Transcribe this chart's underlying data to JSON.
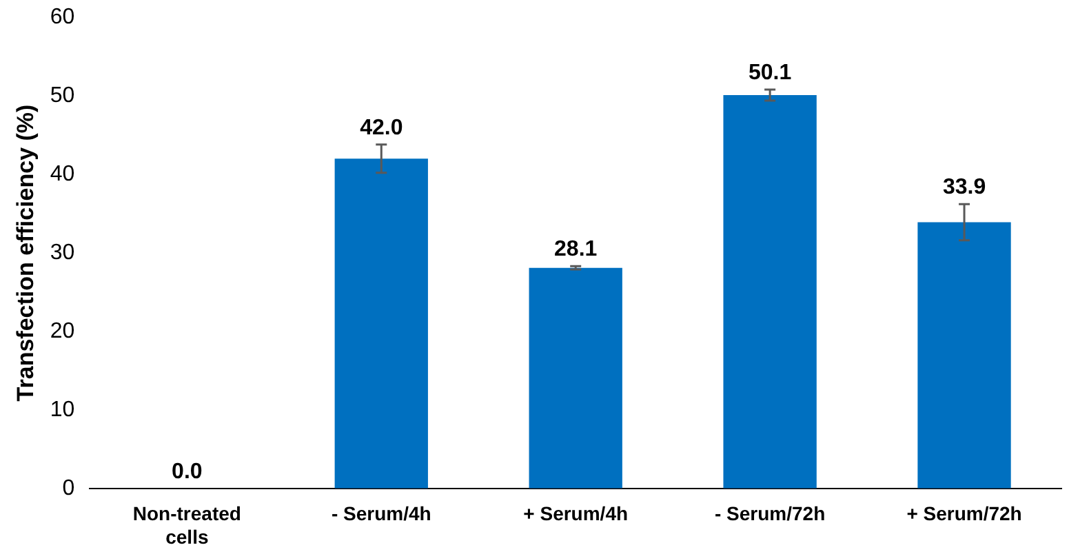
{
  "chart_data": {
    "type": "bar",
    "ylabel": "Transfection efficiency (%)",
    "categories": [
      "Non-treated cells",
      "- Serum/4h",
      "+ Serum/4h",
      "- Serum/72h",
      "+ Serum/72h"
    ],
    "values": [
      0.0,
      42.0,
      28.1,
      50.1,
      33.9
    ],
    "errors": [
      null,
      1.8,
      0.2,
      0.7,
      2.3
    ],
    "value_labels": [
      "0.0",
      "42.0",
      "28.1",
      "50.1",
      "33.9"
    ],
    "color": "#0070c0",
    "ylim": [
      0,
      60
    ],
    "yticks": [
      0,
      10,
      20,
      30,
      40,
      50,
      60
    ],
    "grid": false
  }
}
